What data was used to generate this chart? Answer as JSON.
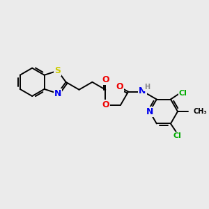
{
  "bg_color": "#ebebeb",
  "bond_color": "#000000",
  "bond_width": 1.4,
  "figsize": [
    3.0,
    3.0
  ],
  "dpi": 100,
  "atoms": {
    "S": {
      "color": "#cccc00",
      "fontsize": 9
    },
    "N": {
      "color": "#0000ee",
      "fontsize": 9
    },
    "O": {
      "color": "#ee0000",
      "fontsize": 9
    },
    "Cl": {
      "color": "#00aa00",
      "fontsize": 8
    },
    "H": {
      "color": "#888888",
      "fontsize": 8
    },
    "C": {
      "color": "#000000",
      "fontsize": 8
    },
    "Me": {
      "color": "#000000",
      "fontsize": 7
    }
  }
}
